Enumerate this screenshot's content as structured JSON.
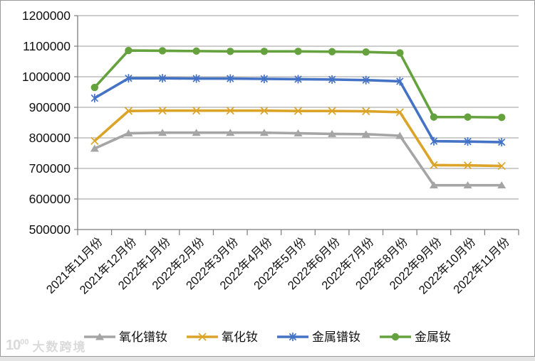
{
  "chart_data": {
    "type": "line",
    "title": "",
    "xlabel": "",
    "ylabel": "",
    "categories": [
      "2021年11月份",
      "2021年12月份",
      "2022年1月份",
      "2022年2月份",
      "2022年3月份",
      "2022年4月份",
      "2022年5月份",
      "2022年6月份",
      "2022年7月份",
      "2022年8月份",
      "2022年9月份",
      "2022年10月份",
      "2022年11月份"
    ],
    "series": [
      {
        "name": "氧化镨钕",
        "marker": "triangle",
        "color": "#a5a5a5",
        "values": [
          765000,
          815000,
          817000,
          817000,
          817000,
          817000,
          815000,
          813000,
          812000,
          807000,
          645000,
          645000,
          645000
        ]
      },
      {
        "name": "氧化钕",
        "marker": "x",
        "color": "#dba428",
        "values": [
          790000,
          888000,
          889000,
          889000,
          889000,
          889000,
          888000,
          888000,
          887000,
          884000,
          711000,
          710000,
          708000
        ]
      },
      {
        "name": "金属镨钕",
        "marker": "asterisk",
        "color": "#4472c4",
        "values": [
          930000,
          995000,
          995000,
          994000,
          994000,
          993000,
          992000,
          991000,
          989000,
          985000,
          789000,
          788000,
          786000
        ]
      },
      {
        "name": "金属钕",
        "marker": "circle",
        "color": "#65a23e",
        "values": [
          965000,
          1086000,
          1085000,
          1084000,
          1083000,
          1083000,
          1083000,
          1082000,
          1081000,
          1078000,
          868000,
          868000,
          867000
        ]
      }
    ],
    "ylim": [
      500000,
      1200000
    ],
    "ytick_step": 100000,
    "ytick_labels": [
      "500000",
      "600000",
      "700000",
      "800000",
      "900000",
      "1000000",
      "1100000",
      "1200000"
    ],
    "grid": "horizontal-only",
    "legend_position": "bottom",
    "x_label_rotation_deg": -45
  },
  "watermark": {
    "logo": "10",
    "logo_sup": "00",
    "text": "大数跨境"
  }
}
